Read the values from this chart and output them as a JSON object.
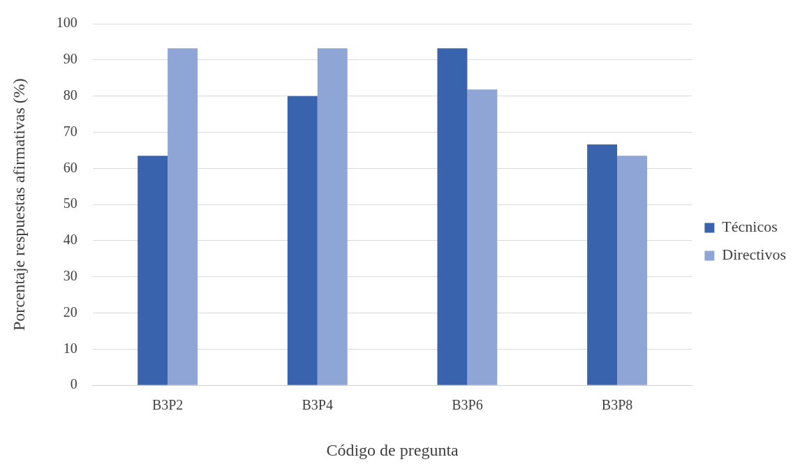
{
  "chart_data": {
    "type": "bar",
    "xlabel": "Código de pregunta",
    "ylabel": "Porcentaje respuestas afirmativas (%)",
    "categories": [
      "B3P2",
      "B3P4",
      "B3P6",
      "B3P8"
    ],
    "series": [
      {
        "name": "Técnicos",
        "color": "#3a63ad",
        "values": [
          63.5,
          80,
          93.2,
          66.6
        ]
      },
      {
        "name": "Directivos",
        "color": "#8fa5d6",
        "values": [
          93.2,
          93.2,
          81.8,
          63.5
        ]
      }
    ],
    "ylim": [
      0,
      100
    ],
    "yticks": [
      0,
      10,
      20,
      30,
      40,
      50,
      60,
      70,
      80,
      90,
      100
    ],
    "grid": "y",
    "legend": "right"
  }
}
